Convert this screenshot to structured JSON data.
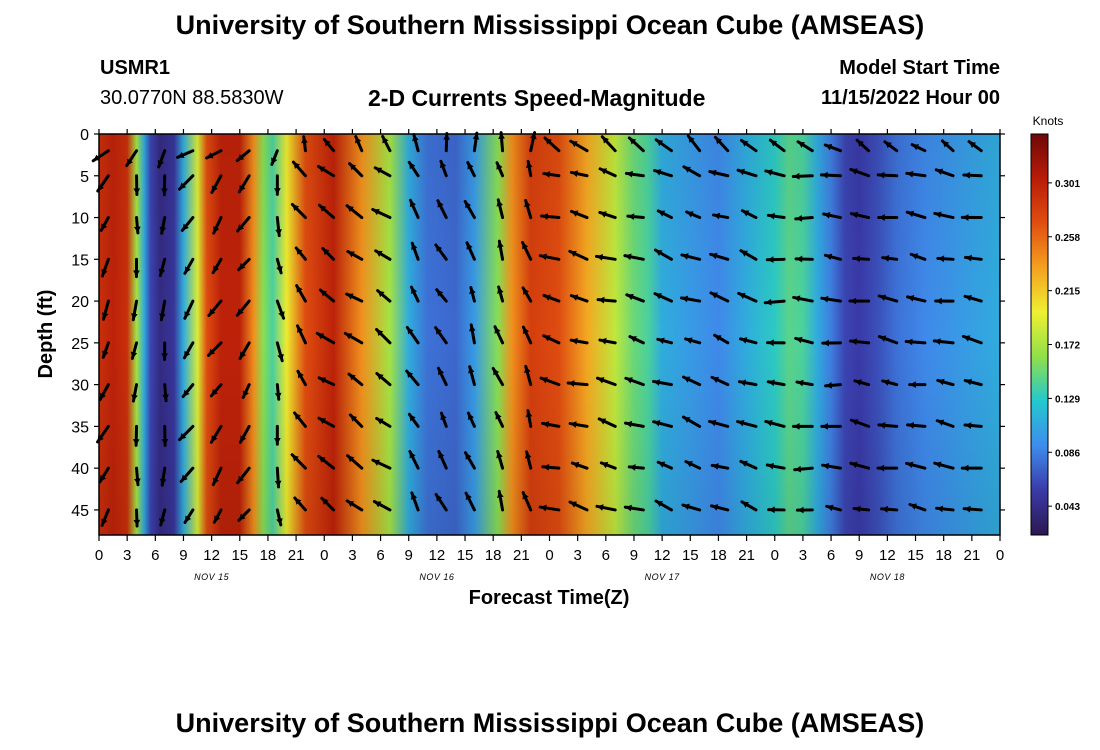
{
  "titles": {
    "main": "University of Southern Mississippi Ocean Cube (AMSEAS)",
    "footer": "University of Southern Mississippi Ocean Cube (AMSEAS)"
  },
  "header": {
    "station": "USMR1",
    "location": "30.0770N  88.5830W",
    "plot_title": "2-D Currents Speed-Magnitude",
    "model_start_label": "Model Start Time",
    "model_start_value": "11/15/2022 Hour 00"
  },
  "colors": {
    "stops": [
      "#2c1850",
      "#3a3aa8",
      "#3f8cec",
      "#22c8d0",
      "#8fe04a",
      "#eef030",
      "#f5a020",
      "#e04e10",
      "#b81c08",
      "#6e0808"
    ],
    "arrow": "#000000"
  },
  "chart_data": {
    "type": "heatmap",
    "xlabel": "Forecast Time(Z)",
    "ylabel": "Depth (ft)",
    "x_tick_labels": [
      "0",
      "3",
      "6",
      "9",
      "12",
      "15",
      "18",
      "21",
      "0",
      "3",
      "6",
      "9",
      "12",
      "15",
      "18",
      "21",
      "0",
      "3",
      "6",
      "9",
      "12",
      "15",
      "18",
      "21",
      "0",
      "3",
      "6",
      "9",
      "12",
      "15",
      "18",
      "21",
      "0"
    ],
    "day_labels": [
      "NOV 15",
      "NOV 16",
      "NOV 17",
      "NOV 18"
    ],
    "y_ticks": [
      0,
      5,
      10,
      15,
      20,
      25,
      30,
      35,
      40,
      45
    ],
    "ylim": [
      0,
      48
    ],
    "xlim_hours": [
      0,
      96
    ],
    "colorbar": {
      "label": "Knots",
      "ticks": [
        "0.301",
        "0.258",
        "0.215",
        "0.172",
        "0.129",
        "0.086",
        "0.043"
      ],
      "range": [
        0.02,
        0.34
      ]
    },
    "speed_profile": {
      "hours": [
        0,
        1.5,
        3,
        4,
        4.8,
        5.5,
        6.5,
        8,
        9,
        10.5,
        11.5,
        13,
        15,
        16.5,
        17.5,
        18.5,
        20,
        22,
        25,
        28,
        31,
        33,
        35,
        38,
        40,
        42.5,
        44,
        46,
        49,
        52,
        55,
        57,
        58.5,
        60,
        63,
        66,
        69,
        72,
        73.5,
        75,
        76.5,
        78,
        79.5,
        81,
        83,
        85,
        88,
        92,
        96
      ],
      "knots": [
        0.29,
        0.3,
        0.29,
        0.17,
        0.11,
        0.06,
        0.04,
        0.05,
        0.11,
        0.19,
        0.27,
        0.3,
        0.3,
        0.24,
        0.16,
        0.14,
        0.2,
        0.27,
        0.3,
        0.24,
        0.17,
        0.11,
        0.08,
        0.075,
        0.1,
        0.16,
        0.24,
        0.28,
        0.27,
        0.23,
        0.18,
        0.15,
        0.14,
        0.11,
        0.1,
        0.09,
        0.11,
        0.13,
        0.145,
        0.14,
        0.11,
        0.085,
        0.06,
        0.055,
        0.065,
        0.08,
        0.09,
        0.1,
        0.11
      ]
    }
  }
}
